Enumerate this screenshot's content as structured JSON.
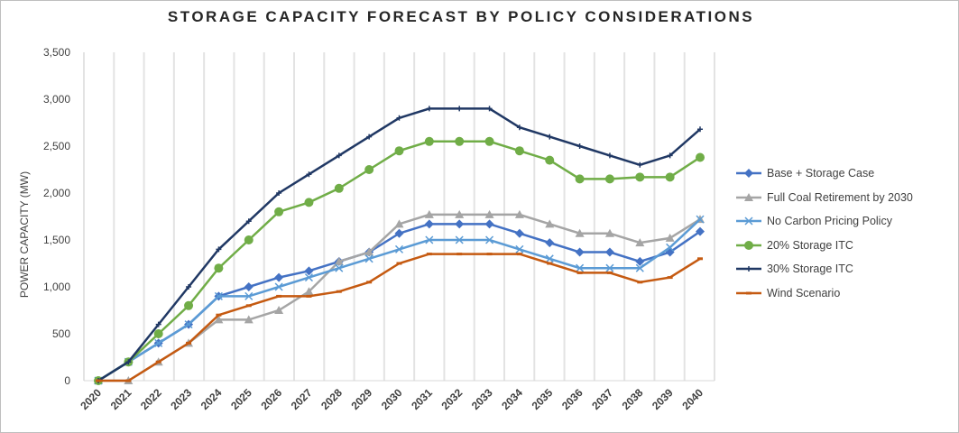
{
  "chart_data": {
    "type": "line",
    "title": "STORAGE CAPACITY FORECAST BY POLICY CONSIDERATIONS",
    "xlabel": "",
    "ylabel": "POWER CAPACITY (MW)",
    "ylim": [
      0,
      3500
    ],
    "yticks": [
      "0",
      "500",
      "1,000",
      "1,500",
      "2,000",
      "2,500",
      "3,000",
      "3,500"
    ],
    "categories": [
      "2020",
      "2021",
      "2022",
      "2023",
      "2024",
      "2025",
      "2026",
      "2027",
      "2028",
      "2029",
      "2030",
      "2031",
      "2032",
      "2033",
      "2034",
      "2035",
      "2036",
      "2037",
      "2038",
      "2039",
      "2040"
    ],
    "grid": "vertical",
    "legend": "right",
    "series": [
      {
        "name": "Base + Storage Case",
        "color": "#4472c4",
        "marker": "diamond",
        "values": [
          0,
          200,
          400,
          600,
          900,
          1000,
          1100,
          1170,
          1270,
          1370,
          1570,
          1670,
          1670,
          1670,
          1570,
          1470,
          1370,
          1370,
          1270,
          1370,
          1590
        ]
      },
      {
        "name": "Full Coal Retirement by 2030",
        "color": "#a5a5a5",
        "marker": "triangle",
        "values": [
          0,
          0,
          200,
          400,
          650,
          650,
          750,
          950,
          1270,
          1370,
          1670,
          1770,
          1770,
          1770,
          1770,
          1670,
          1570,
          1570,
          1470,
          1520,
          1720
        ]
      },
      {
        "name": "No Carbon Pricing Policy",
        "color": "#5b9bd5",
        "marker": "x",
        "values": [
          0,
          200,
          400,
          600,
          900,
          900,
          1000,
          1100,
          1200,
          1300,
          1400,
          1500,
          1500,
          1500,
          1400,
          1300,
          1200,
          1200,
          1200,
          1420,
          1720
        ]
      },
      {
        "name": "20% Storage ITC",
        "color": "#70ad47",
        "marker": "circle",
        "values": [
          0,
          200,
          500,
          800,
          1200,
          1500,
          1800,
          1900,
          2050,
          2250,
          2450,
          2550,
          2550,
          2550,
          2450,
          2350,
          2150,
          2150,
          2170,
          2170,
          2380
        ]
      },
      {
        "name": "30% Storage ITC",
        "color": "#203864",
        "marker": "plus",
        "values": [
          0,
          200,
          600,
          1000,
          1400,
          1700,
          2000,
          2200,
          2400,
          2600,
          2800,
          2900,
          2900,
          2900,
          2700,
          2600,
          2500,
          2400,
          2300,
          2400,
          2680
        ]
      },
      {
        "name": "Wind Scenario",
        "color": "#c55a11",
        "marker": "dash",
        "values": [
          0,
          0,
          200,
          400,
          700,
          800,
          900,
          900,
          950,
          1050,
          1250,
          1350,
          1350,
          1350,
          1350,
          1250,
          1150,
          1150,
          1050,
          1100,
          1300
        ]
      }
    ]
  }
}
